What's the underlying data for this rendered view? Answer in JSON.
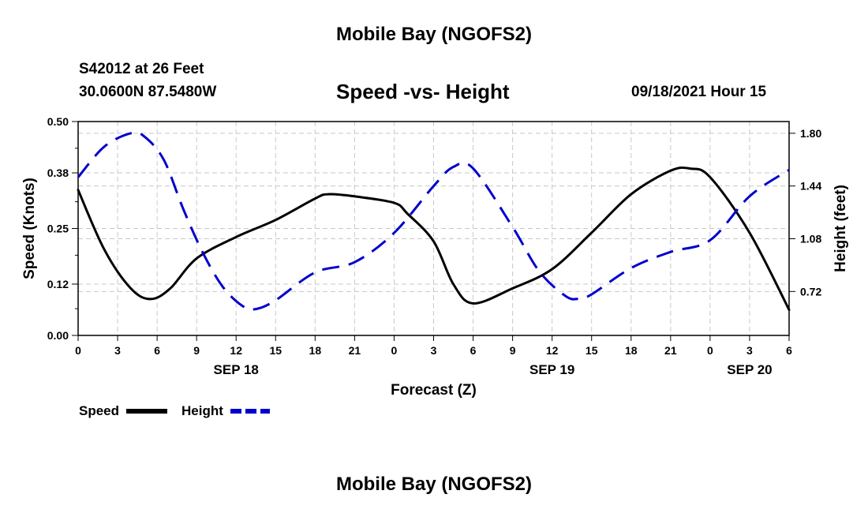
{
  "title_top": "Mobile Bay (NGOFS2)",
  "title_bottom": "Mobile Bay (NGOFS2)",
  "station": "S42012 at 26 Feet",
  "coords": "30.0600N  87.5480W",
  "datetime": "09/18/2021 Hour 15",
  "chart_data": {
    "type": "line",
    "title": "Speed -vs- Height",
    "xlabel": "Forecast (Z)",
    "ylabel_left": "Speed (Knots)",
    "ylabel_right": "Height (feet)",
    "x_range_hours": [
      0,
      54
    ],
    "x_tick_hours": [
      0,
      3,
      6,
      9,
      12,
      15,
      18,
      21,
      24,
      27,
      30,
      33,
      36,
      39,
      42,
      45,
      48,
      51,
      54
    ],
    "x_tick_labels": [
      "0",
      "3",
      "6",
      "9",
      "12",
      "15",
      "18",
      "21",
      "0",
      "3",
      "6",
      "9",
      "12",
      "15",
      "18",
      "21",
      "0",
      "3",
      "6"
    ],
    "date_labels": [
      {
        "hour": 12,
        "label": "SEP 18"
      },
      {
        "hour": 36,
        "label": "SEP 19"
      },
      {
        "hour": 51,
        "label": "SEP 20"
      }
    ],
    "y_left_range": [
      0,
      0.5
    ],
    "y_left_ticks": [
      "0.00",
      "0.12",
      "0.25",
      "0.38",
      "0.50"
    ],
    "y_right_range": [
      0.42,
      1.88
    ],
    "y_right_ticks": [
      "0.72",
      "1.08",
      "1.44",
      "1.80"
    ],
    "grid": true,
    "legend_position": "bottom-left",
    "series": [
      {
        "name": "Speed",
        "axis": "left",
        "color": "#000000",
        "style": "solid",
        "x": [
          0,
          2,
          4,
          5.5,
          7,
          9,
          12,
          15,
          18,
          19,
          21,
          24,
          25,
          27,
          28.5,
          30,
          33,
          36,
          39,
          42,
          45,
          46.5,
          48,
          51,
          54
        ],
        "y": [
          0.34,
          0.2,
          0.11,
          0.085,
          0.11,
          0.18,
          0.23,
          0.27,
          0.32,
          0.33,
          0.325,
          0.31,
          0.285,
          0.22,
          0.12,
          0.075,
          0.11,
          0.155,
          0.24,
          0.33,
          0.385,
          0.39,
          0.37,
          0.24,
          0.06
        ]
      },
      {
        "name": "Height",
        "axis": "right",
        "color": "#0000cc",
        "style": "dashed",
        "x": [
          0,
          2,
          4,
          5,
          6.5,
          8,
          9.5,
          11,
          12.5,
          13.5,
          15,
          18,
          21,
          24,
          27,
          28.5,
          30,
          33,
          35,
          37,
          38,
          39,
          42,
          45,
          48,
          51,
          54
        ],
        "y": [
          1.5,
          1.71,
          1.8,
          1.78,
          1.62,
          1.28,
          0.98,
          0.75,
          0.62,
          0.6,
          0.66,
          0.85,
          0.92,
          1.12,
          1.44,
          1.57,
          1.56,
          1.16,
          0.86,
          0.69,
          0.67,
          0.7,
          0.88,
          0.99,
          1.07,
          1.37,
          1.55
        ]
      }
    ]
  }
}
